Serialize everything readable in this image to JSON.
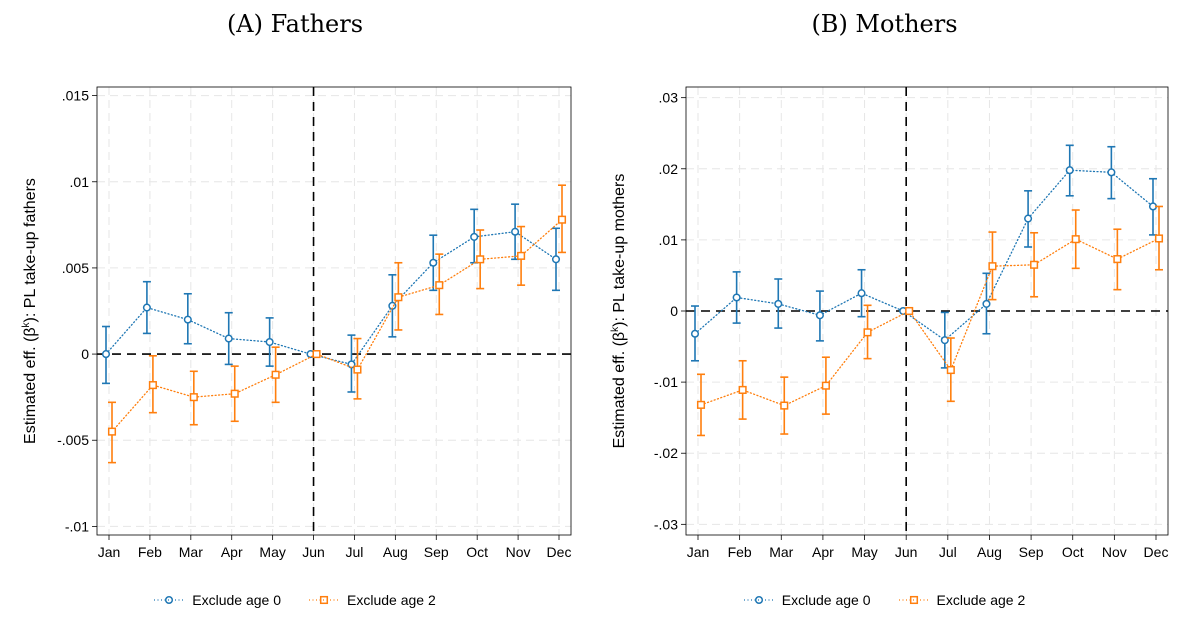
{
  "chart_data": [
    {
      "type": "line",
      "title": "(A) Fathers",
      "ylabel": "Estimated eff. (β^k): PL take-up fathers",
      "categories": [
        "Jan",
        "Feb",
        "Mar",
        "Apr",
        "May",
        "Jun",
        "Jul",
        "Aug",
        "Sep",
        "Oct",
        "Nov",
        "Dec"
      ],
      "ylim": [
        -0.0105,
        0.0155
      ],
      "yticks": [
        -0.01,
        -0.005,
        0,
        0.005,
        0.01,
        0.015
      ],
      "ytick_labels": [
        "-.01",
        "-.005",
        "0",
        ".005",
        ".01",
        ".015"
      ],
      "reference_line_y": 0,
      "reference_line_x": "Jun",
      "grid": true,
      "legend_position": "bottom",
      "series": [
        {
          "name": "Exclude age 0",
          "color": "#1f77b4",
          "marker": "circle",
          "values": [
            0.0,
            0.0027,
            0.002,
            0.0009,
            0.0007,
            0.0,
            -0.0006,
            0.0028,
            0.0053,
            0.0068,
            0.0071,
            0.0055
          ],
          "lower": [
            -0.0017,
            0.0012,
            0.0006,
            -0.0006,
            -0.0007,
            0.0,
            -0.0022,
            0.001,
            0.0037,
            0.0053,
            0.0055,
            0.0037
          ],
          "upper": [
            0.0016,
            0.0042,
            0.0035,
            0.0024,
            0.0021,
            0.0,
            0.0011,
            0.0046,
            0.0069,
            0.0084,
            0.0087,
            0.0073
          ]
        },
        {
          "name": "Exclude age 2",
          "color": "#ff7f0e",
          "marker": "square",
          "values": [
            -0.0045,
            -0.0018,
            -0.0025,
            -0.0023,
            -0.0012,
            0.0,
            -0.0009,
            0.0033,
            0.004,
            0.0055,
            0.0057,
            0.0078
          ],
          "lower": [
            -0.0063,
            -0.0034,
            -0.0041,
            -0.0039,
            -0.0028,
            0.0,
            -0.0026,
            0.0014,
            0.0023,
            0.0038,
            0.004,
            0.0059
          ],
          "upper": [
            -0.0028,
            -0.0001,
            -0.001,
            -0.0007,
            0.0004,
            0.0,
            0.0009,
            0.0053,
            0.0058,
            0.0072,
            0.0074,
            0.0098
          ]
        }
      ]
    },
    {
      "type": "line",
      "title": "(B) Mothers",
      "ylabel": "Estimated eff. (β^k): PL take-up mothers",
      "categories": [
        "Jan",
        "Feb",
        "Mar",
        "Apr",
        "May",
        "Jun",
        "Jul",
        "Aug",
        "Sep",
        "Oct",
        "Nov",
        "Dec"
      ],
      "ylim": [
        -0.0315,
        0.0315
      ],
      "yticks": [
        -0.03,
        -0.02,
        -0.01,
        0,
        0.01,
        0.02,
        0.03
      ],
      "ytick_labels": [
        "-.03",
        "-.02",
        "-.01",
        "0",
        ".01",
        ".02",
        ".03"
      ],
      "reference_line_y": 0,
      "reference_line_x": "Jun",
      "grid": true,
      "legend_position": "bottom",
      "series": [
        {
          "name": "Exclude age 0",
          "color": "#1f77b4",
          "marker": "circle",
          "values": [
            -0.0032,
            0.0019,
            0.001,
            -0.0006,
            0.0025,
            0.0,
            -0.0041,
            0.001,
            0.013,
            0.0198,
            0.0195,
            0.0147
          ],
          "lower": [
            -0.007,
            -0.0017,
            -0.0024,
            -0.0042,
            -0.0008,
            0.0,
            -0.008,
            -0.0032,
            0.009,
            0.0162,
            0.0158,
            0.0107
          ],
          "upper": [
            0.0007,
            0.0055,
            0.0045,
            0.0028,
            0.0058,
            0.0,
            -0.0002,
            0.0053,
            0.0169,
            0.0233,
            0.0231,
            0.0186
          ]
        },
        {
          "name": "Exclude age 2",
          "color": "#ff7f0e",
          "marker": "square",
          "values": [
            -0.0132,
            -0.0111,
            -0.0133,
            -0.0105,
            -0.003,
            0.0,
            -0.0083,
            0.0063,
            0.0065,
            0.0101,
            0.0073,
            0.0102
          ],
          "lower": [
            -0.0175,
            -0.0152,
            -0.0173,
            -0.0145,
            -0.0067,
            0.0,
            -0.0127,
            0.0016,
            0.002,
            0.006,
            0.003,
            0.0058
          ],
          "upper": [
            -0.0089,
            -0.007,
            -0.0093,
            -0.0065,
            0.0008,
            0.0,
            -0.0038,
            0.0111,
            0.011,
            0.0142,
            0.0115,
            0.0147
          ]
        }
      ]
    }
  ]
}
